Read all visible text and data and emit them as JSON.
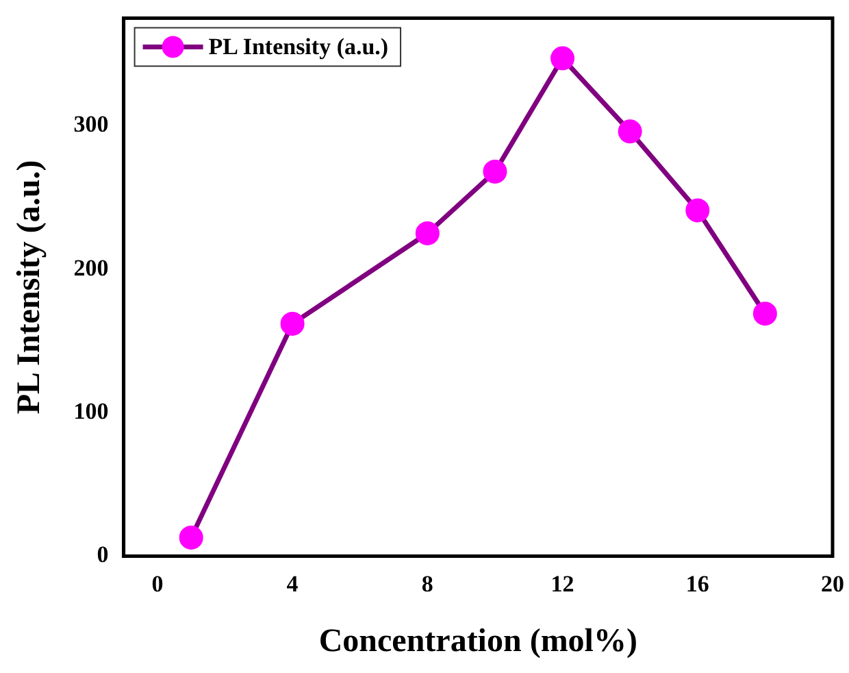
{
  "chart_data": {
    "type": "line",
    "xlabel": "Concentration (mol%)",
    "ylabel": "PL Intensity (a.u.)",
    "x": [
      1,
      4,
      8,
      10,
      12,
      14,
      16,
      18
    ],
    "series": [
      {
        "name": "PL Intensity (a.u.)",
        "color": "#800080",
        "values": [
          13,
          162,
          225,
          268,
          347,
          296,
          241,
          169
        ]
      }
    ],
    "xlim": [
      -1,
      20
    ],
    "xticks": [
      0,
      4,
      8,
      12,
      16,
      20
    ],
    "ylim": [
      0,
      375
    ],
    "yticks": [
      0,
      100,
      200,
      300
    ],
    "grid": false,
    "legend": "top left",
    "marker": "circle",
    "line_style": "solid"
  }
}
